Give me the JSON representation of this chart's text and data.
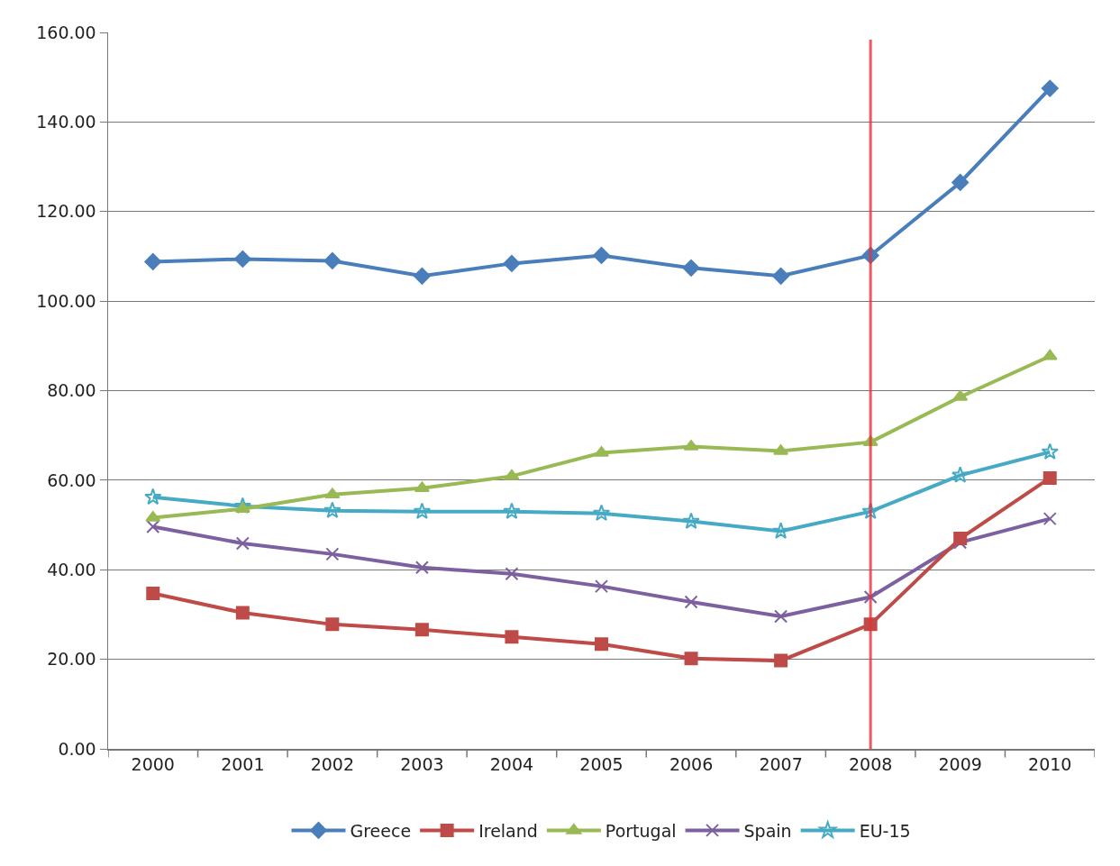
{
  "chart_data": {
    "type": "line",
    "categories": [
      "2000",
      "2001",
      "2002",
      "2003",
      "2004",
      "2005",
      "2006",
      "2007",
      "2008",
      "2009",
      "2010"
    ],
    "series": [
      {
        "name": "Greece",
        "color": "#4a7ebb",
        "marker": "diamond",
        "values": [
          108.8,
          109.4,
          109.0,
          105.6,
          108.4,
          110.2,
          107.4,
          105.6,
          110.2,
          126.5,
          147.5
        ]
      },
      {
        "name": "Ireland",
        "color": "#be4b48",
        "marker": "square",
        "values": [
          34.7,
          30.4,
          27.8,
          26.6,
          25.0,
          23.4,
          20.2,
          19.7,
          27.8,
          47.0,
          60.5
        ]
      },
      {
        "name": "Portugal",
        "color": "#98b954",
        "marker": "triangle",
        "values": [
          51.6,
          53.6,
          56.8,
          58.2,
          60.9,
          66.1,
          67.5,
          66.5,
          68.5,
          78.6,
          87.7
        ]
      },
      {
        "name": "Spain",
        "color": "#7d60a0",
        "marker": "cross",
        "values": [
          49.6,
          45.9,
          43.5,
          40.5,
          39.1,
          36.3,
          32.8,
          29.6,
          33.9,
          46.1,
          51.4
        ]
      },
      {
        "name": "EU-15",
        "color": "#46aac5",
        "marker": "star",
        "values": [
          56.2,
          54.2,
          53.2,
          53.0,
          53.0,
          52.6,
          50.8,
          48.6,
          53.0,
          61.1,
          66.3
        ]
      }
    ],
    "ylim": [
      0,
      160
    ],
    "yticks": [
      {
        "value": 0,
        "label": "0.00"
      },
      {
        "value": 20,
        "label": "20.00"
      },
      {
        "value": 40,
        "label": "40.00"
      },
      {
        "value": 60,
        "label": "60.00"
      },
      {
        "value": 80,
        "label": "80.00"
      },
      {
        "value": 100,
        "label": "100.00"
      },
      {
        "value": 120,
        "label": "120.00"
      },
      {
        "value": 140,
        "label": "140.00"
      },
      {
        "value": 160,
        "label": "160.00"
      }
    ],
    "grid": "y",
    "legend": "bottom",
    "line_style": "solid",
    "ref_lines": [
      {
        "axis": "x",
        "value": "2008",
        "color": "#e8303a"
      }
    ]
  }
}
